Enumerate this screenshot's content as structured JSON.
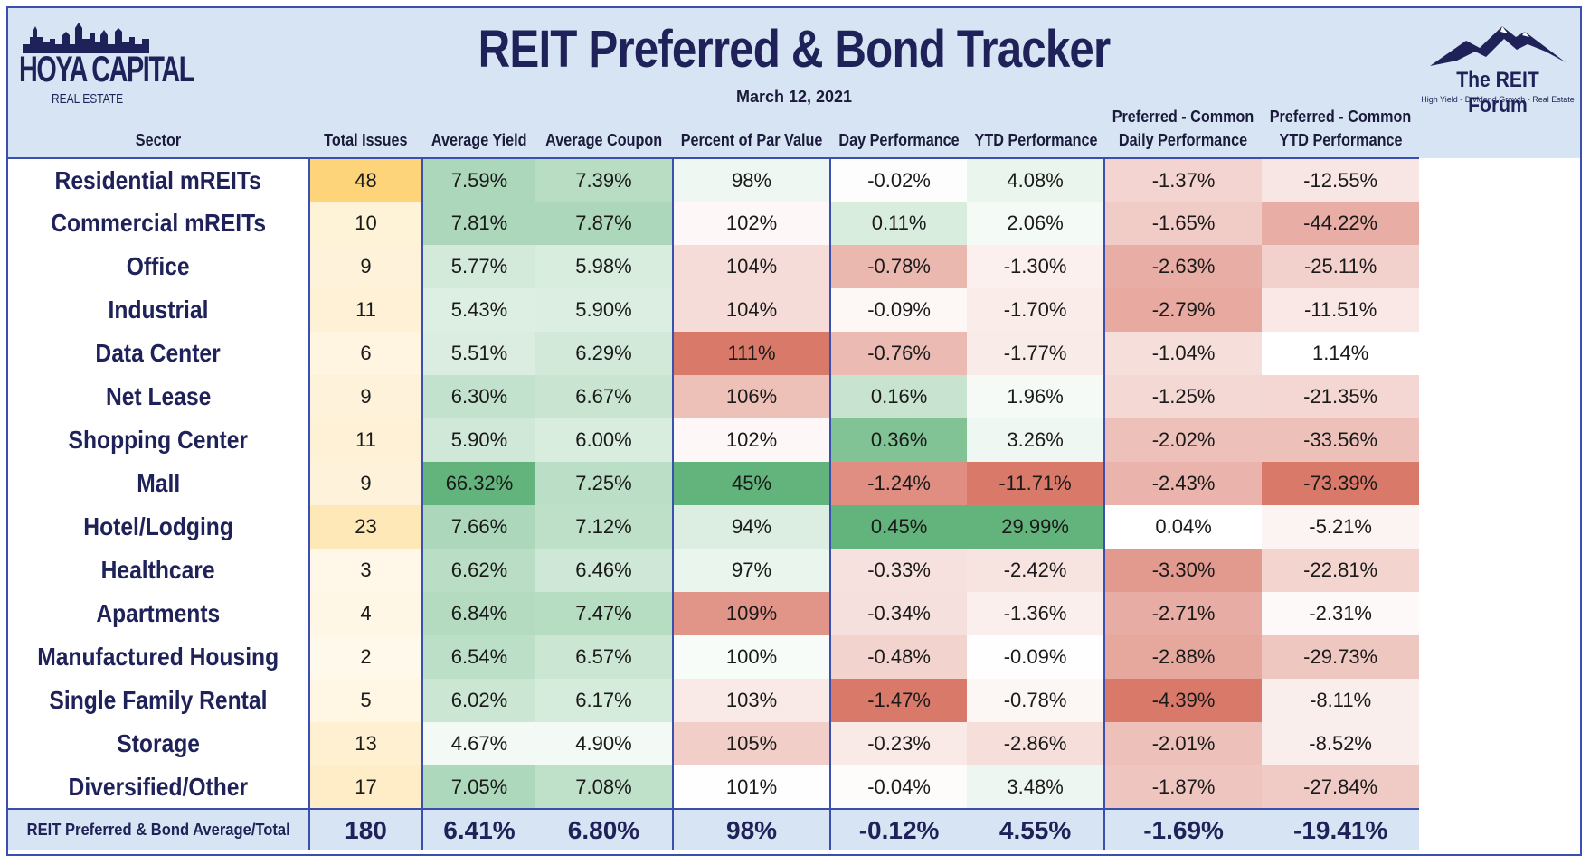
{
  "header": {
    "title": "REIT Preferred & Bond Tracker",
    "date": "March 12, 2021",
    "left_logo": {
      "name": "HOYA CAPITAL",
      "sub": "REAL ESTATE"
    },
    "right_logo": {
      "name": "The REIT Forum",
      "sub": "High Yield - Dividend Growth - Real Estate"
    }
  },
  "columns": {
    "sector": "Sector",
    "issues": "Total Issues",
    "yield": "Average Yield",
    "coupon": "Average Coupon",
    "par": "Percent of Par Value",
    "day": "Day Performance",
    "ytd": "YTD Performance",
    "pc_daily_1": "Preferred - Common",
    "pc_daily_2": "Daily Performance",
    "pc_ytd_1": "Preferred - Common",
    "pc_ytd_2": "YTD Performance"
  },
  "chart_data": {
    "type": "table",
    "title": "REIT Preferred & Bond Tracker",
    "subtitle": "March 12, 2021",
    "rows": [
      {
        "sector": "Residential mREITs",
        "issues": "48",
        "yield": "7.59%",
        "coupon": "7.39%",
        "par": "98%",
        "day": "-0.02%",
        "ytd": "4.08%",
        "pc_daily": "-1.37%",
        "pc_ytd": "-12.55%"
      },
      {
        "sector": "Commercial mREITs",
        "issues": "10",
        "yield": "7.81%",
        "coupon": "7.87%",
        "par": "102%",
        "day": "0.11%",
        "ytd": "2.06%",
        "pc_daily": "-1.65%",
        "pc_ytd": "-44.22%"
      },
      {
        "sector": "Office",
        "issues": "9",
        "yield": "5.77%",
        "coupon": "5.98%",
        "par": "104%",
        "day": "-0.78%",
        "ytd": "-1.30%",
        "pc_daily": "-2.63%",
        "pc_ytd": "-25.11%"
      },
      {
        "sector": "Industrial",
        "issues": "11",
        "yield": "5.43%",
        "coupon": "5.90%",
        "par": "104%",
        "day": "-0.09%",
        "ytd": "-1.70%",
        "pc_daily": "-2.79%",
        "pc_ytd": "-11.51%"
      },
      {
        "sector": "Data Center",
        "issues": "6",
        "yield": "5.51%",
        "coupon": "6.29%",
        "par": "111%",
        "day": "-0.76%",
        "ytd": "-1.77%",
        "pc_daily": "-1.04%",
        "pc_ytd": "1.14%"
      },
      {
        "sector": "Net Lease",
        "issues": "9",
        "yield": "6.30%",
        "coupon": "6.67%",
        "par": "106%",
        "day": "0.16%",
        "ytd": "1.96%",
        "pc_daily": "-1.25%",
        "pc_ytd": "-21.35%"
      },
      {
        "sector": "Shopping Center",
        "issues": "11",
        "yield": "5.90%",
        "coupon": "6.00%",
        "par": "102%",
        "day": "0.36%",
        "ytd": "3.26%",
        "pc_daily": "-2.02%",
        "pc_ytd": "-33.56%"
      },
      {
        "sector": "Mall",
        "issues": "9",
        "yield": "66.32%",
        "coupon": "7.25%",
        "par": "45%",
        "day": "-1.24%",
        "ytd": "-11.71%",
        "pc_daily": "-2.43%",
        "pc_ytd": "-73.39%"
      },
      {
        "sector": "Hotel/Lodging",
        "issues": "23",
        "yield": "7.66%",
        "coupon": "7.12%",
        "par": "94%",
        "day": "0.45%",
        "ytd": "29.99%",
        "pc_daily": "0.04%",
        "pc_ytd": "-5.21%"
      },
      {
        "sector": "Healthcare",
        "issues": "3",
        "yield": "6.62%",
        "coupon": "6.46%",
        "par": "97%",
        "day": "-0.33%",
        "ytd": "-2.42%",
        "pc_daily": "-3.30%",
        "pc_ytd": "-22.81%"
      },
      {
        "sector": "Apartments",
        "issues": "4",
        "yield": "6.84%",
        "coupon": "7.47%",
        "par": "109%",
        "day": "-0.34%",
        "ytd": "-1.36%",
        "pc_daily": "-2.71%",
        "pc_ytd": "-2.31%"
      },
      {
        "sector": "Manufactured Housing",
        "issues": "2",
        "yield": "6.54%",
        "coupon": "6.57%",
        "par": "100%",
        "day": "-0.48%",
        "ytd": "-0.09%",
        "pc_daily": "-2.88%",
        "pc_ytd": "-29.73%"
      },
      {
        "sector": "Single Family Rental",
        "issues": "5",
        "yield": "6.02%",
        "coupon": "6.17%",
        "par": "103%",
        "day": "-1.47%",
        "ytd": "-0.78%",
        "pc_daily": "-4.39%",
        "pc_ytd": "-8.11%"
      },
      {
        "sector": "Storage",
        "issues": "13",
        "yield": "4.67%",
        "coupon": "4.90%",
        "par": "105%",
        "day": "-0.23%",
        "ytd": "-2.86%",
        "pc_daily": "-2.01%",
        "pc_ytd": "-8.52%"
      },
      {
        "sector": "Diversified/Other",
        "issues": "17",
        "yield": "7.05%",
        "coupon": "7.08%",
        "par": "101%",
        "day": "-0.04%",
        "ytd": "3.48%",
        "pc_daily": "-1.87%",
        "pc_ytd": "-27.84%"
      }
    ],
    "total": {
      "sector": "REIT Preferred & Bond Average/Total",
      "issues": "180",
      "yield": "6.41%",
      "coupon": "6.80%",
      "par": "98%",
      "day": "-0.12%",
      "ytd": "4.55%",
      "pc_daily": "-1.69%",
      "pc_ytd": "-19.41%"
    }
  },
  "colors": {
    "header_bg": "#d7e4f3",
    "border": "#3b4fb0",
    "title": "#1f2259",
    "heat_green": "#63b47c",
    "heat_red": "#d9796a",
    "heat_yellow": "#fdd47a",
    "neutral": "#ffffff"
  }
}
